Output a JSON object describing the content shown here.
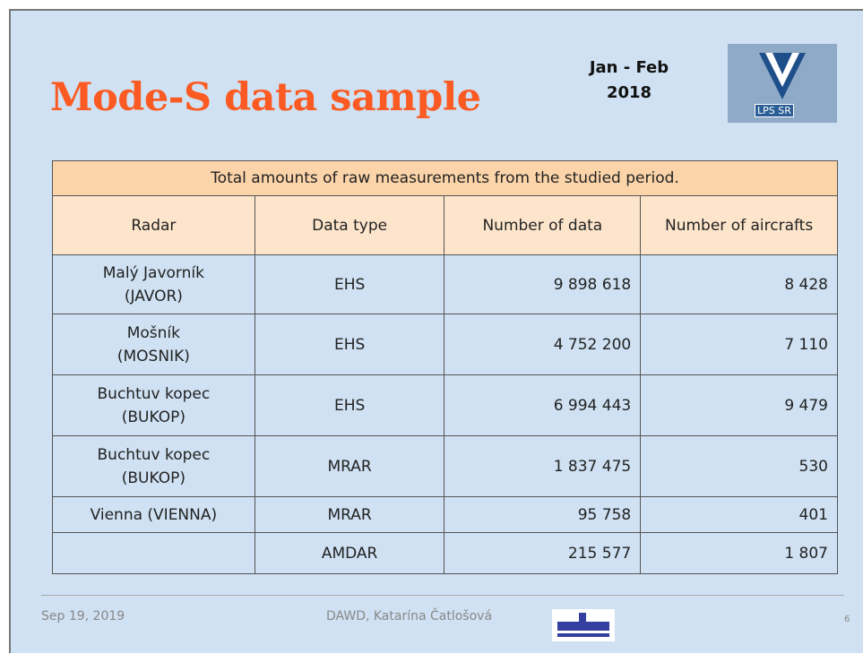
{
  "header": {
    "title": "Mode-S data sample",
    "date": "Jan - Feb\n2018",
    "logo": "LPS SR"
  },
  "table": {
    "caption": "Total amounts of raw measurements from the studied period.",
    "columns": [
      "Radar",
      "Data type",
      "Number of data",
      "Number of aircrafts"
    ],
    "rows": [
      [
        "Malý Javorník\n(JAVOR)",
        "EHS",
        "9 898 618",
        "8 428"
      ],
      [
        "Mošník\n(MOSNIK)",
        "EHS",
        "4 752 200",
        "7 110"
      ],
      [
        "Buchtuv kopec\n(BUKOP)",
        "EHS",
        "6 994 443",
        "9 479"
      ],
      [
        "Buchtuv kopec\n(BUKOP)",
        "MRAR",
        "1 837 475",
        "530"
      ],
      [
        "Vienna (VIENNA)",
        "MRAR",
        "95 758",
        "401"
      ],
      [
        null,
        "AMDAR",
        "215 577",
        "1 807"
      ]
    ]
  },
  "footer": {
    "date": "Sep 19, 2019",
    "author": "DAWD, Katarína Čatlošová",
    "page": "6"
  }
}
